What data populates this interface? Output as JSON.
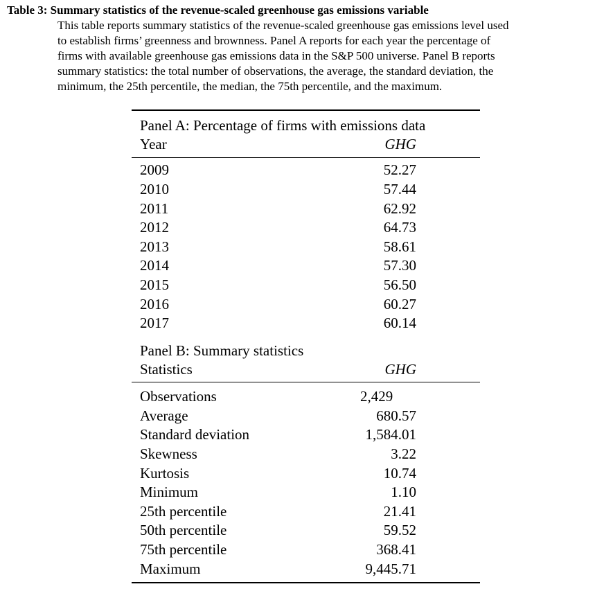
{
  "caption": {
    "label": "Table 3:",
    "title": "Summary statistics of the revenue-scaled greenhouse gas emissions variable",
    "body_lines": [
      "This table reports summary statistics of the revenue-scaled greenhouse gas emissions level used",
      "to establish firms’ greenness and brownness. Panel A reports for each year the percentage of",
      "firms with available greenhouse gas emissions data in the S&P 500 universe. Panel B reports",
      "summary statistics: the total number of observations, the average, the standard deviation, the",
      "minimum, the 25th percentile, the median, the 75th percentile, and the maximum."
    ]
  },
  "panel_a": {
    "title": "Panel A: Percentage of firms with emissions data",
    "col_left": "Year",
    "col_right": "GHG",
    "rows": [
      {
        "label": "2009",
        "value": "52.27"
      },
      {
        "label": "2010",
        "value": "57.44"
      },
      {
        "label": "2011",
        "value": "62.92"
      },
      {
        "label": "2012",
        "value": "64.73"
      },
      {
        "label": "2013",
        "value": "58.61"
      },
      {
        "label": "2014",
        "value": "57.30"
      },
      {
        "label": "2015",
        "value": "56.50"
      },
      {
        "label": "2016",
        "value": "60.27"
      },
      {
        "label": "2017",
        "value": "60.14"
      }
    ]
  },
  "panel_b": {
    "title": "Panel B: Summary statistics",
    "col_left": "Statistics",
    "col_right": "GHG",
    "rows": [
      {
        "label": "Observations",
        "value": "2,429"
      },
      {
        "label": "Average",
        "value": "680.57"
      },
      {
        "label": "Standard deviation",
        "value": "1,584.01"
      },
      {
        "label": "Skewness",
        "value": "3.22"
      },
      {
        "label": "Kurtosis",
        "value": "10.74"
      },
      {
        "label": "Minimum",
        "value": "1.10"
      },
      {
        "label": "25th percentile",
        "value": "21.41"
      },
      {
        "label": "50th percentile",
        "value": "59.52"
      },
      {
        "label": "75th percentile",
        "value": "368.41"
      },
      {
        "label": "Maximum",
        "value": "9,445.71"
      }
    ]
  }
}
